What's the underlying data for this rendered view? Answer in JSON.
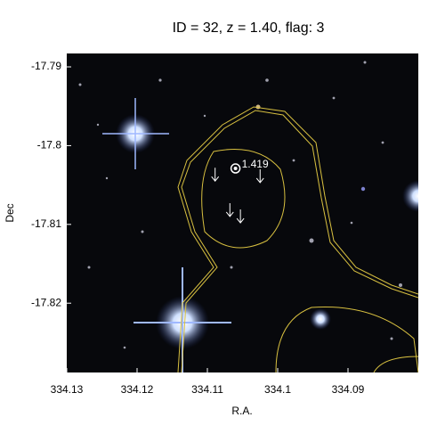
{
  "chart_data": {
    "type": "image",
    "title": "ID = 32, z = 1.40, flag: 3",
    "xlabel": "R.A.",
    "ylabel": "Dec",
    "xlim": [
      334.13,
      334.08
    ],
    "xticks": [
      334.13,
      334.12,
      334.11,
      334.1,
      334.09
    ],
    "ylim": [
      -17.8288,
      -17.7883
    ],
    "yticks": [
      -17.79,
      -17.8,
      -17.81,
      -17.82
    ],
    "source": {
      "x": 334.106,
      "y": -17.8029,
      "label": "1.419",
      "color": "#ffffff"
    },
    "arrows": {
      "x": [
        334.1089,
        334.1025,
        334.1068,
        334.1053
      ],
      "y": [
        -17.8045,
        -17.8047,
        -17.809,
        -17.8098
      ],
      "color": "#ffffff"
    },
    "contour_color": "#d8c040"
  }
}
